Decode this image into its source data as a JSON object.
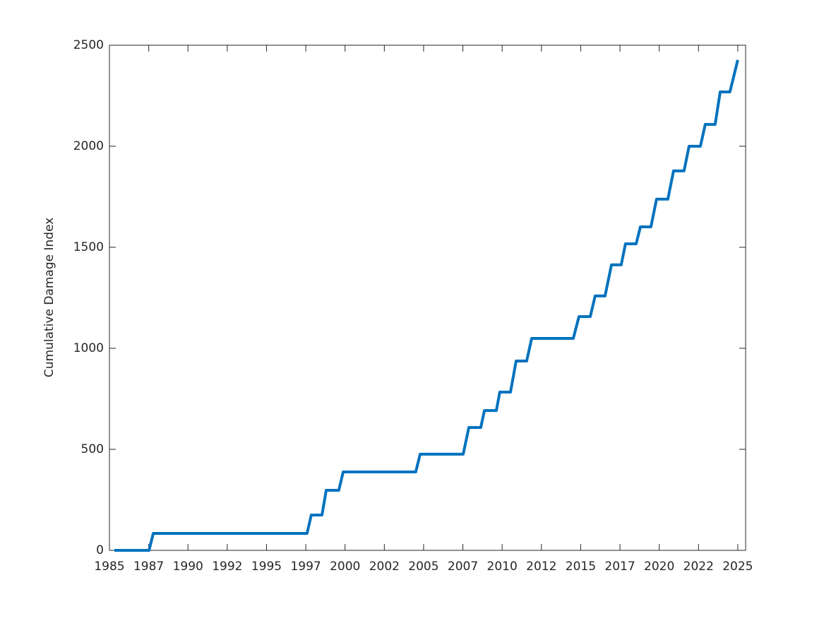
{
  "chart_data": {
    "type": "line",
    "ylabel": "Cumulative Damage Index",
    "x": [
      1985.31,
      1987.52,
      1987.79,
      1997.58,
      1997.85,
      1998.53,
      1998.8,
      1999.6,
      1999.88,
      2004.5,
      2004.78,
      2007.52,
      2007.88,
      2008.64,
      2008.87,
      2009.63,
      2009.85,
      2010.53,
      2010.89,
      2011.56,
      2011.88,
      2014.53,
      2014.89,
      2015.61,
      2015.92,
      2016.55,
      2016.96,
      2017.58,
      2017.85,
      2018.53,
      2018.8,
      2019.47,
      2019.83,
      2020.55,
      2020.91,
      2021.58,
      2021.9,
      2022.62,
      2022.93,
      2023.56,
      2023.88,
      2024.5,
      2025.0
    ],
    "series": [
      {
        "name": "Cumulative Damage Index",
        "color": "#0072bd",
        "values": [
          0,
          0,
          84,
          84,
          175,
          175,
          297,
          297,
          388,
          388,
          476,
          476,
          608,
          608,
          692,
          692,
          783,
          783,
          937,
          937,
          1049,
          1049,
          1157,
          1157,
          1259,
          1259,
          1413,
          1413,
          1517,
          1517,
          1601,
          1601,
          1738,
          1738,
          1878,
          1878,
          2000,
          2000,
          2108,
          2108,
          2269,
          2269,
          2427
        ]
      }
    ],
    "xlim": [
      1985,
      2025.5
    ],
    "xticks": [
      1985,
      {
        "value": 1987.5,
        "label": "1987"
      },
      1990,
      {
        "value": 1992.5,
        "label": "1992"
      },
      1995,
      {
        "value": 1997.5,
        "label": "1997"
      },
      2000,
      {
        "value": 2002.5,
        "label": "2002"
      },
      2005,
      {
        "value": 2007.5,
        "label": "2007"
      },
      2010,
      {
        "value": 2012.5,
        "label": "2012"
      },
      2015,
      {
        "value": 2017.5,
        "label": "2017"
      },
      2020,
      {
        "value": 2022.5,
        "label": "2022"
      },
      2025
    ],
    "ylim": [
      0,
      2500
    ],
    "yticks": [
      0,
      500,
      1000,
      1500,
      2000,
      2500
    ],
    "grid": false
  }
}
